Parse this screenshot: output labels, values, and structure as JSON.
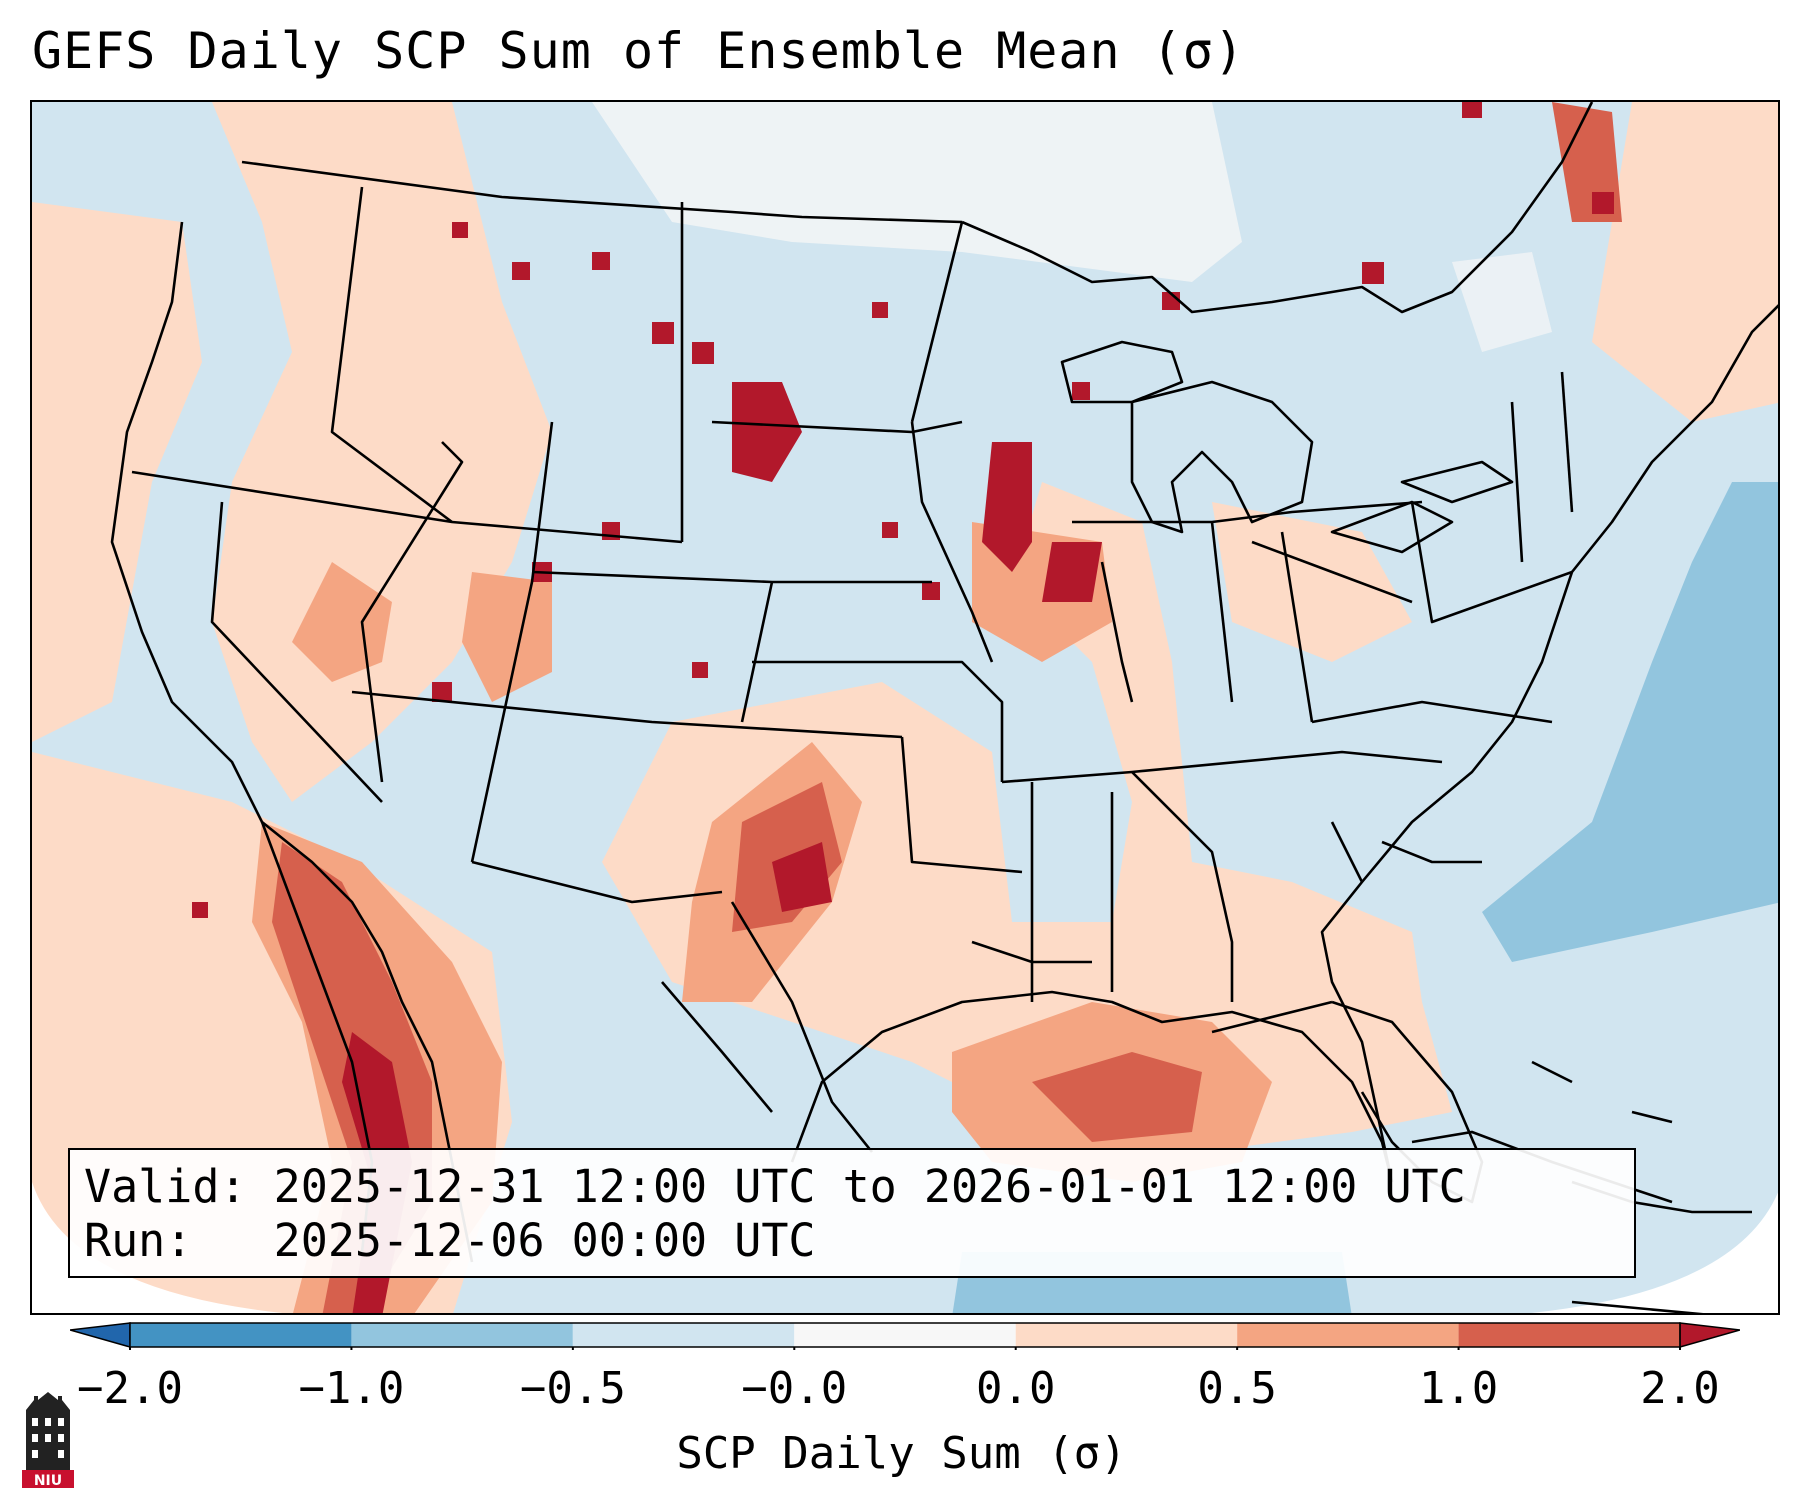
{
  "title": "GEFS Daily SCP Sum of Ensemble Mean (σ)",
  "info": {
    "valid_label": "Valid:",
    "valid_value": "2025-12-31 12:00 UTC to 2026-01-01 12:00 UTC",
    "run_label": "Run:",
    "run_value": "2025-12-06 00:00 UTC"
  },
  "colorbar": {
    "label": "SCP Daily Sum (σ)",
    "ticks": [
      "−2.0",
      "−1.0",
      "−0.5",
      "−0.0",
      "0.0",
      "0.5",
      "1.0",
      "2.0"
    ],
    "bins": [
      {
        "range": "−2.0 to −1.0",
        "color": "#4393c3"
      },
      {
        "range": "−1.0 to −0.5",
        "color": "#92c5de"
      },
      {
        "range": "−0.5 to −0.0",
        "color": "#d1e5f0"
      },
      {
        "range": "−0.0 to 0.0",
        "color": "#f7f7f7"
      },
      {
        "range": "0.0 to 0.5",
        "color": "#fddbc7"
      },
      {
        "range": "0.5 to 1.0",
        "color": "#f4a582"
      },
      {
        "range": "1.0 to 2.0",
        "color": "#d6604d"
      },
      {
        "over": "> 2.0",
        "color": "#b2182b"
      }
    ],
    "under_color": "#2166ac",
    "over_color": "#b2182b"
  },
  "logo": {
    "text": "NIU",
    "color": "#c8102e"
  }
}
